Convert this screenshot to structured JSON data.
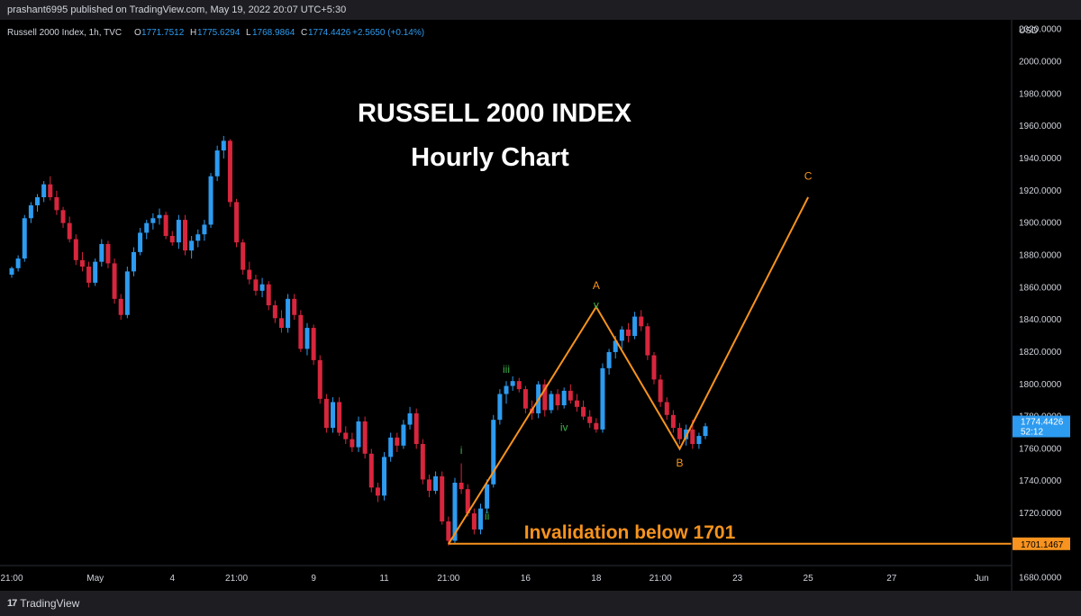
{
  "header": {
    "published": "prashant6995 published on TradingView.com, May 19, 2022 20:07 UTC+5:30"
  },
  "legend": {
    "symbol": "Russell 2000 Index, 1h, TVC",
    "open_label": "O",
    "open": "1771.7512",
    "high_label": "H",
    "high": "1775.6294",
    "low_label": "L",
    "low": "1768.9864",
    "close_label": "C",
    "close": "1774.4426",
    "change": "+2.5650 (+0.14%)"
  },
  "footer": {
    "brand": "TradingView",
    "brand_mark": "17"
  },
  "colors": {
    "up": "#2d9bf0",
    "down": "#d7263d",
    "orange": "#f7931e",
    "wave_green": "#3db04a",
    "text": "#d1d4dc",
    "last_price_bg": "#2d9bf0"
  },
  "chart_data": {
    "type": "candlestick",
    "title": "RUSSELL 2000 INDEX",
    "subtitle": "Hourly Chart",
    "y_unit": "USD",
    "ylim": [
      1672,
      2026
    ],
    "y_ticks": [
      "2020.0000",
      "2000.0000",
      "1980.0000",
      "1960.0000",
      "1940.0000",
      "1920.0000",
      "1900.0000",
      "1880.0000",
      "1860.0000",
      "1840.0000",
      "1820.0000",
      "1800.0000",
      "1780.0000",
      "1760.0000",
      "1740.0000",
      "1720.0000",
      "1700.0000",
      "1680.0000"
    ],
    "x_ticks": [
      {
        "label": "21:00",
        "bar": 0
      },
      {
        "label": "May",
        "bar": 13
      },
      {
        "label": "4",
        "bar": 25
      },
      {
        "label": "21:00",
        "bar": 35
      },
      {
        "label": "9",
        "bar": 47
      },
      {
        "label": "11",
        "bar": 58
      },
      {
        "label": "21:00",
        "bar": 68
      },
      {
        "label": "16",
        "bar": 80
      },
      {
        "label": "18",
        "bar": 91
      },
      {
        "label": "21:00",
        "bar": 101
      },
      {
        "label": "23",
        "bar": 113
      },
      {
        "label": "25",
        "bar": 124
      },
      {
        "label": "27",
        "bar": 137
      },
      {
        "label": "Jun",
        "bar": 151
      }
    ],
    "candles": [
      [
        1868,
        1873,
        1866,
        1872
      ],
      [
        1872,
        1880,
        1870,
        1878
      ],
      [
        1878,
        1905,
        1876,
        1903
      ],
      [
        1903,
        1913,
        1900,
        1911
      ],
      [
        1911,
        1918,
        1907,
        1916
      ],
      [
        1916,
        1926,
        1913,
        1924
      ],
      [
        1924,
        1929,
        1914,
        1916
      ],
      [
        1916,
        1920,
        1905,
        1908
      ],
      [
        1908,
        1910,
        1897,
        1900
      ],
      [
        1900,
        1904,
        1888,
        1890
      ],
      [
        1890,
        1893,
        1874,
        1877
      ],
      [
        1877,
        1882,
        1870,
        1873
      ],
      [
        1873,
        1876,
        1860,
        1863
      ],
      [
        1863,
        1878,
        1861,
        1876
      ],
      [
        1876,
        1890,
        1873,
        1887
      ],
      [
        1887,
        1889,
        1872,
        1875
      ],
      [
        1875,
        1878,
        1850,
        1853
      ],
      [
        1853,
        1856,
        1840,
        1843
      ],
      [
        1843,
        1873,
        1841,
        1870
      ],
      [
        1870,
        1885,
        1867,
        1882
      ],
      [
        1882,
        1897,
        1880,
        1894
      ],
      [
        1894,
        1902,
        1890,
        1900
      ],
      [
        1900,
        1906,
        1896,
        1903
      ],
      [
        1903,
        1909,
        1899,
        1905
      ],
      [
        1905,
        1907,
        1890,
        1892
      ],
      [
        1892,
        1895,
        1886,
        1888
      ],
      [
        1888,
        1905,
        1884,
        1902
      ],
      [
        1902,
        1905,
        1880,
        1883
      ],
      [
        1883,
        1892,
        1878,
        1889
      ],
      [
        1889,
        1896,
        1885,
        1893
      ],
      [
        1893,
        1902,
        1889,
        1899
      ],
      [
        1899,
        1931,
        1897,
        1929
      ],
      [
        1929,
        1948,
        1926,
        1945
      ],
      [
        1945,
        1954,
        1940,
        1951
      ],
      [
        1951,
        1952,
        1910,
        1913
      ],
      [
        1913,
        1915,
        1885,
        1888
      ],
      [
        1888,
        1890,
        1868,
        1871
      ],
      [
        1871,
        1876,
        1862,
        1865
      ],
      [
        1865,
        1868,
        1855,
        1858
      ],
      [
        1858,
        1866,
        1854,
        1862
      ],
      [
        1862,
        1864,
        1846,
        1849
      ],
      [
        1849,
        1852,
        1838,
        1841
      ],
      [
        1841,
        1846,
        1832,
        1835
      ],
      [
        1835,
        1856,
        1832,
        1853
      ],
      [
        1853,
        1856,
        1840,
        1843
      ],
      [
        1843,
        1846,
        1820,
        1822
      ],
      [
        1822,
        1838,
        1818,
        1835
      ],
      [
        1835,
        1837,
        1812,
        1815
      ],
      [
        1815,
        1818,
        1788,
        1791
      ],
      [
        1791,
        1794,
        1770,
        1773
      ],
      [
        1773,
        1792,
        1770,
        1789
      ],
      [
        1789,
        1792,
        1768,
        1770
      ],
      [
        1770,
        1774,
        1763,
        1766
      ],
      [
        1766,
        1770,
        1758,
        1761
      ],
      [
        1761,
        1780,
        1758,
        1777
      ],
      [
        1777,
        1780,
        1754,
        1757
      ],
      [
        1757,
        1760,
        1733,
        1736
      ],
      [
        1736,
        1739,
        1727,
        1731
      ],
      [
        1731,
        1758,
        1728,
        1755
      ],
      [
        1755,
        1770,
        1752,
        1767
      ],
      [
        1767,
        1770,
        1758,
        1762
      ],
      [
        1762,
        1778,
        1760,
        1775
      ],
      [
        1775,
        1786,
        1772,
        1782
      ],
      [
        1782,
        1785,
        1760,
        1763
      ],
      [
        1763,
        1766,
        1738,
        1741
      ],
      [
        1741,
        1744,
        1730,
        1734
      ],
      [
        1734,
        1746,
        1732,
        1743
      ],
      [
        1743,
        1746,
        1713,
        1715
      ],
      [
        1715,
        1718,
        1700,
        1703
      ],
      [
        1703,
        1742,
        1701,
        1739
      ],
      [
        1739,
        1751,
        1732,
        1735
      ],
      [
        1735,
        1738,
        1718,
        1720
      ],
      [
        1720,
        1723,
        1707,
        1710
      ],
      [
        1710,
        1726,
        1707,
        1723
      ],
      [
        1723,
        1741,
        1720,
        1738
      ],
      [
        1738,
        1781,
        1736,
        1778
      ],
      [
        1778,
        1797,
        1775,
        1794
      ],
      [
        1794,
        1802,
        1788,
        1799
      ],
      [
        1799,
        1805,
        1796,
        1802
      ],
      [
        1802,
        1804,
        1795,
        1797
      ],
      [
        1797,
        1799,
        1782,
        1785
      ],
      [
        1785,
        1790,
        1778,
        1782
      ],
      [
        1782,
        1802,
        1779,
        1800
      ],
      [
        1800,
        1803,
        1780,
        1784
      ],
      [
        1784,
        1796,
        1782,
        1794
      ],
      [
        1794,
        1797,
        1784,
        1787
      ],
      [
        1787,
        1798,
        1785,
        1796
      ],
      [
        1796,
        1800,
        1788,
        1790
      ],
      [
        1790,
        1794,
        1783,
        1786
      ],
      [
        1786,
        1790,
        1778,
        1780
      ],
      [
        1780,
        1784,
        1773,
        1776
      ],
      [
        1776,
        1779,
        1770,
        1772
      ],
      [
        1772,
        1813,
        1770,
        1810
      ],
      [
        1810,
        1822,
        1806,
        1820
      ],
      [
        1820,
        1830,
        1816,
        1827
      ],
      [
        1827,
        1836,
        1822,
        1834
      ],
      [
        1834,
        1838,
        1826,
        1830
      ],
      [
        1830,
        1845,
        1828,
        1842
      ],
      [
        1842,
        1846,
        1833,
        1836
      ],
      [
        1836,
        1838,
        1815,
        1818
      ],
      [
        1818,
        1820,
        1800,
        1803
      ],
      [
        1803,
        1806,
        1786,
        1789
      ],
      [
        1789,
        1792,
        1778,
        1781
      ],
      [
        1781,
        1784,
        1770,
        1773
      ],
      [
        1773,
        1776,
        1763,
        1766
      ],
      [
        1766,
        1775,
        1762,
        1772
      ],
      [
        1772,
        1778,
        1760,
        1763
      ],
      [
        1763,
        1770,
        1760,
        1768
      ],
      [
        1768,
        1776,
        1766,
        1774
      ]
    ],
    "price_line": {
      "value": 1701.1467,
      "label": "1701.1467"
    },
    "last_price": {
      "value": 1774.4426,
      "label": "1774.4426",
      "countdown": "52:12"
    },
    "wave_path": [
      {
        "bar": 68,
        "price": 1701
      },
      {
        "bar": 91,
        "price": 1848
      },
      {
        "bar": 104,
        "price": 1760
      },
      {
        "bar": 124,
        "price": 1916
      }
    ],
    "annotations": [
      {
        "text": "A",
        "bar": 91,
        "price": 1859,
        "color": "orange"
      },
      {
        "text": "B",
        "bar": 104,
        "price": 1749,
        "color": "orange"
      },
      {
        "text": "C",
        "bar": 124,
        "price": 1927,
        "color": "orange"
      },
      {
        "text": "i",
        "bar": 70,
        "price": 1757,
        "color": "wave_green"
      },
      {
        "text": "ii",
        "bar": 74,
        "price": 1716,
        "color": "wave_green"
      },
      {
        "text": "iii",
        "bar": 77,
        "price": 1807,
        "color": "wave_green"
      },
      {
        "text": "iv",
        "bar": 86,
        "price": 1771,
        "color": "wave_green"
      },
      {
        "text": "v",
        "bar": 91,
        "price": 1847,
        "color": "wave_green"
      }
    ],
    "note": "Invalidation below 1701"
  }
}
